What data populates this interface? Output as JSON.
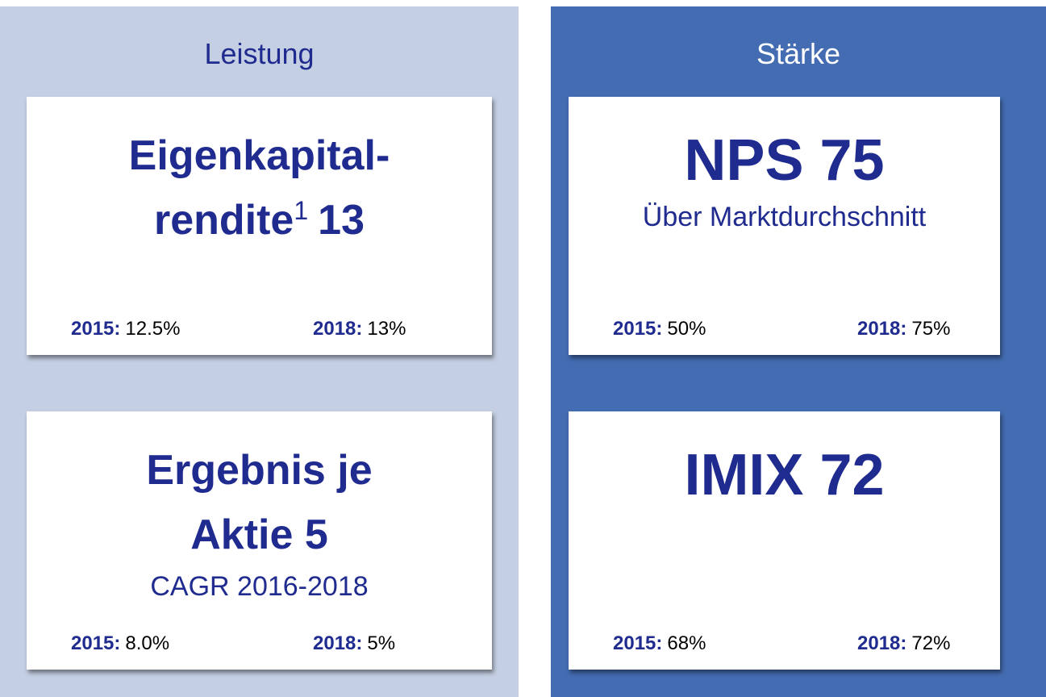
{
  "panels": [
    {
      "title": "Leistung",
      "cards": [
        {
          "lines": [
            {
              "text": "Eigenkapital-"
            },
            {
              "text": "rendite",
              "sup": "1",
              "after": "13"
            }
          ],
          "stats": [
            {
              "year": "2015:",
              "value": "12.5%"
            },
            {
              "year": "2018:",
              "value": "13%"
            }
          ]
        },
        {
          "lines": [
            {
              "text": "Ergebnis je"
            },
            {
              "text": "Aktie 5"
            }
          ],
          "subtitle": "CAGR 2016-2018",
          "stats": [
            {
              "year": "2015:",
              "value": "8.0%"
            },
            {
              "year": "2018:",
              "value": "5%"
            }
          ]
        }
      ]
    },
    {
      "title": "Stärke",
      "cards": [
        {
          "lines": [
            {
              "text": "NPS 75"
            }
          ],
          "subtitle": "Über Marktdurchschnitt",
          "stats": [
            {
              "year": "2015:",
              "value": "50%"
            },
            {
              "year": "2018:",
              "value": "75%"
            }
          ]
        },
        {
          "lines": [
            {
              "text": "IMIX 72"
            }
          ],
          "stats": [
            {
              "year": "2015:",
              "value": "68%"
            },
            {
              "year": "2018:",
              "value": "72%"
            }
          ]
        }
      ]
    }
  ]
}
